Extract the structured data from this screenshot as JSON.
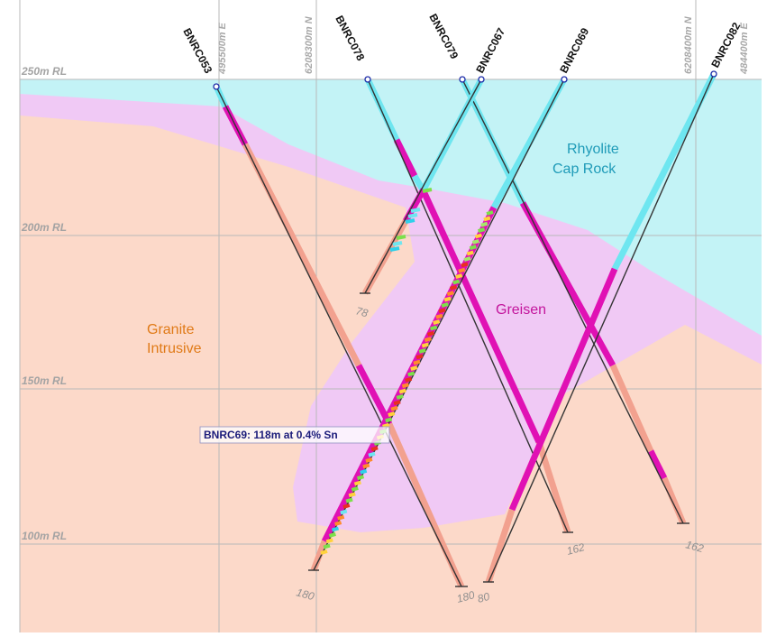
{
  "rl_labels": [
    "250m RL",
    "200m RL",
    "150m RL",
    "100m RL"
  ],
  "grid_labels": [
    "495500m E",
    "6208300m N",
    "6208400m N",
    "484400m E"
  ],
  "drillholes": [
    "BNRC053",
    "BNRC078",
    "BNRC079",
    "BNRC067",
    "BNRC069",
    "BNRC082"
  ],
  "depth_labels": [
    "78",
    "180",
    "180",
    "80",
    "162",
    "162"
  ],
  "geology_units": {
    "rhyolite_line1": "Rhyolite",
    "rhyolite_line2": "Cap Rock",
    "greisen": "Greisen",
    "granite_line1": "Granite",
    "granite_line2": "Intrusive"
  },
  "intercept_label": "BNRC69: 118m at 0.4% Sn",
  "colors": {
    "granite": "#fcd9c9",
    "greisen": "#f0c9f5",
    "rhyolite": "#c3f3f6",
    "magenta_interval": "#e011b4",
    "cyan_interval": "#6ee6f0",
    "salmon_interval": "#f2a18f",
    "grid": "#b9b9b9"
  }
}
